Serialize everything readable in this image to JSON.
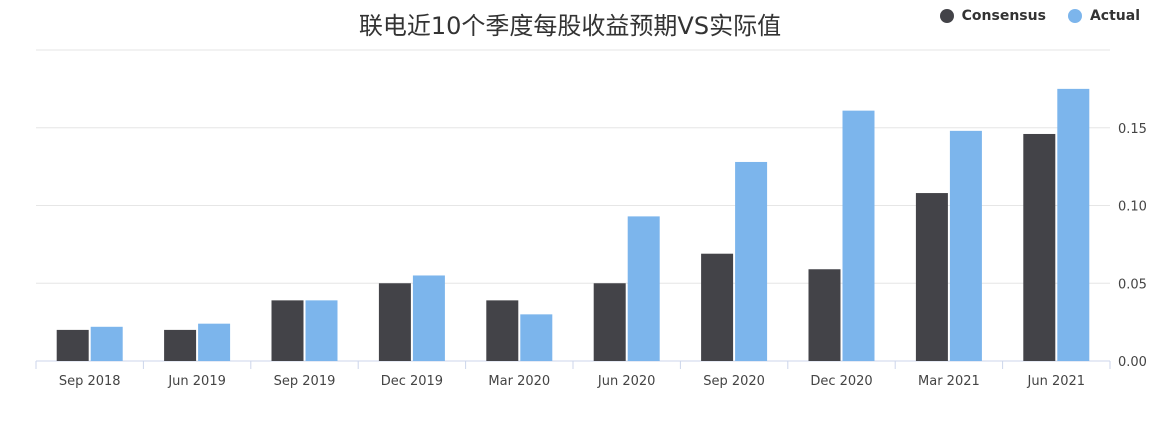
{
  "chart_data": {
    "type": "bar",
    "title": "联电近10个季度每股收益预期VS实际值",
    "categories": [
      "Sep 2018",
      "Jun 2019",
      "Sep 2019",
      "Dec 2019",
      "Mar 2020",
      "Jun 2020",
      "Sep 2020",
      "Dec 2020",
      "Mar 2021",
      "Jun 2021"
    ],
    "series": [
      {
        "name": "Consensus",
        "color": "#434348",
        "values": [
          0.02,
          0.02,
          0.039,
          0.05,
          0.039,
          0.05,
          0.069,
          0.059,
          0.108,
          0.146
        ]
      },
      {
        "name": "Actual",
        "color": "#7cb5ec",
        "values": [
          0.022,
          0.024,
          0.039,
          0.055,
          0.03,
          0.093,
          0.128,
          0.161,
          0.148,
          0.175
        ]
      }
    ],
    "y_ticks": [
      "0.00",
      "0.05",
      "0.10",
      "0.15"
    ],
    "ylim": [
      0,
      0.2
    ],
    "y_axis_side": "right",
    "grid": true,
    "legend_position": "top-right",
    "xlabel": "",
    "ylabel": ""
  }
}
